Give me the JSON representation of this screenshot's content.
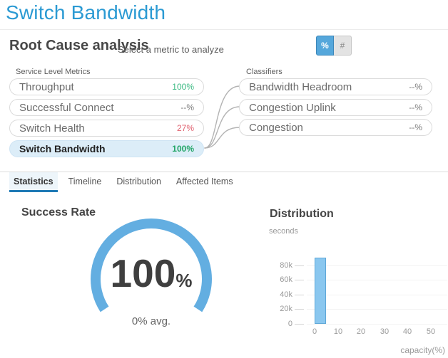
{
  "window": {
    "title": "Switch Bandwidth"
  },
  "root_cause": {
    "heading": "Root Cause analysis",
    "subheading": "Select a metric to analyze",
    "unit_toggle": {
      "percent_label": "%",
      "count_label": "#",
      "selected": "%"
    },
    "service_level_metrics": {
      "group_label": "Service Level Metrics",
      "items": [
        {
          "label": "Throughput",
          "value": "100%",
          "status": "good",
          "selected": false
        },
        {
          "label": "Successful Connect",
          "value": "--%",
          "status": "na",
          "selected": false
        },
        {
          "label": "Switch Health",
          "value": "27%",
          "status": "bad",
          "selected": false
        },
        {
          "label": "Switch Bandwidth",
          "value": "100%",
          "status": "good",
          "selected": true
        }
      ]
    },
    "classifiers": {
      "group_label": "Classifiers",
      "items": [
        {
          "label": "Bandwidth Headroom",
          "value": "--%"
        },
        {
          "label": "Congestion Uplink",
          "value": "--%"
        },
        {
          "label": "Congestion",
          "value": "--%"
        }
      ]
    }
  },
  "tabs": [
    {
      "label": "Statistics",
      "active": true
    },
    {
      "label": "Timeline",
      "active": false
    },
    {
      "label": "Distribution",
      "active": false
    },
    {
      "label": "Affected Items",
      "active": false
    }
  ],
  "colors": {
    "title_blue": "#2b9ad3",
    "gauge_blue": "#63aee1",
    "bar_fill": "#8ac7ef",
    "bar_border": "#5fa8d8",
    "good_green": "#3cba83",
    "bad_red": "#e0606e",
    "selected_pill_bg": "#dcedf8",
    "tab_underline": "#1e79b5",
    "toggle_on_bg": "#55a7db"
  },
  "chart_data": [
    {
      "type": "gauge",
      "title": "Success Rate",
      "value": 100,
      "value_label": "100",
      "unit": "%",
      "annotation": "0% avg.",
      "arc_color": "#63aee1",
      "arc_span_deg": 245
    },
    {
      "type": "bar",
      "title": "Distribution",
      "ylabel": "seconds",
      "xlabel": "capacity(%)",
      "x": [
        0
      ],
      "bar_span_x": [
        0,
        5
      ],
      "values": [
        90000
      ],
      "x_tick_labels": [
        "0",
        "10",
        "20",
        "30",
        "40",
        "50"
      ],
      "y_tick_labels": [
        "80k",
        "60k",
        "40k",
        "20k",
        "0"
      ],
      "xlim": [
        -3,
        58
      ],
      "ylim": [
        0,
        97000
      ],
      "grid": "horizontal",
      "legend": "none"
    }
  ]
}
